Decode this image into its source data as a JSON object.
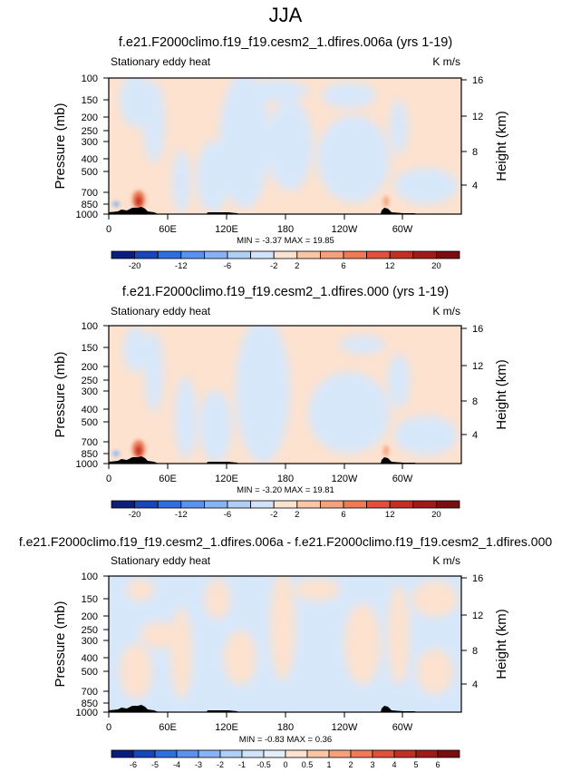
{
  "figure_title": "JJA",
  "panels": [
    {
      "title": "f.e21.F2000climo.f19_f19.cesm2_1.dfires.006a (yrs 1-19)",
      "left_label": "Stationary eddy heat",
      "right_label": "K m/s",
      "stats": "MIN = -3.37  MAX = 19.85",
      "colorbar_labels": [
        "-20",
        "-12",
        "-6",
        "-2",
        "2",
        "6",
        "12",
        "20"
      ],
      "colorbar_colors": [
        "#0a1f7d",
        "#1646b7",
        "#2f6fdd",
        "#5a93ee",
        "#86b3f5",
        "#afcff9",
        "#d1e3fa",
        "#fde2cf",
        "#fbc6a4",
        "#f6a17b",
        "#ef7b55",
        "#e0503a",
        "#c42e23",
        "#a11b16",
        "#7a0d0e"
      ]
    },
    {
      "title": "f.e21.F2000climo.f19_f19.cesm2_1.dfires.000 (yrs 1-19)",
      "left_label": "Stationary eddy heat",
      "right_label": "K m/s",
      "stats": "MIN = -3.20  MAX = 19.81",
      "colorbar_labels": [
        "-20",
        "-12",
        "-6",
        "-2",
        "2",
        "6",
        "12",
        "20"
      ],
      "colorbar_colors": [
        "#0a1f7d",
        "#1646b7",
        "#2f6fdd",
        "#5a93ee",
        "#86b3f5",
        "#afcff9",
        "#d1e3fa",
        "#fde2cf",
        "#fbc6a4",
        "#f6a17b",
        "#ef7b55",
        "#e0503a",
        "#c42e23",
        "#a11b16",
        "#7a0d0e"
      ]
    },
    {
      "title": "f.e21.F2000climo.f19_f19.cesm2_1.dfires.006a - f.e21.F2000climo.f19_f19.cesm2_1.dfires.000",
      "left_label": "Stationary eddy heat",
      "right_label": "K m/s",
      "stats": "MIN = -0.83  MAX = 0.36",
      "colorbar_labels": [
        "-6",
        "-5",
        "-4",
        "-3",
        "-2",
        "-1",
        "-0.5",
        "0",
        "0.5",
        "1",
        "2",
        "3",
        "4",
        "5",
        "6"
      ],
      "colorbar_colors": [
        "#0a1f7d",
        "#1646b7",
        "#2f6fdd",
        "#5a93ee",
        "#86b3f5",
        "#afcff9",
        "#d1e3fa",
        "#e4eefb",
        "#fde2cf",
        "#fbc6a4",
        "#f6a17b",
        "#ef7b55",
        "#e0503a",
        "#c42e23",
        "#a11b16",
        "#7a0d0e"
      ]
    }
  ],
  "chart_data": {
    "type": "heatmap",
    "x_ticks": [
      "0",
      "60E",
      "120E",
      "180",
      "120W",
      "60W"
    ],
    "x_tick_lons": [
      0,
      60,
      120,
      180,
      240,
      300
    ],
    "x_range_lon": [
      0,
      360
    ],
    "y_ticks": [
      "100",
      "150",
      "200",
      "250",
      "300",
      "400",
      "500",
      "700",
      "850",
      "1000"
    ],
    "y_tick_values_mb": [
      100,
      150,
      200,
      250,
      300,
      400,
      500,
      700,
      850,
      1000
    ],
    "y_range_mb": [
      100,
      1000
    ],
    "height_ticks": [
      "4",
      "8",
      "12",
      "16"
    ],
    "height_tick_values_km": [
      4,
      8,
      12,
      16
    ],
    "ylabel": "Pressure (mb)",
    "ylabel_right": "Height (km)"
  }
}
